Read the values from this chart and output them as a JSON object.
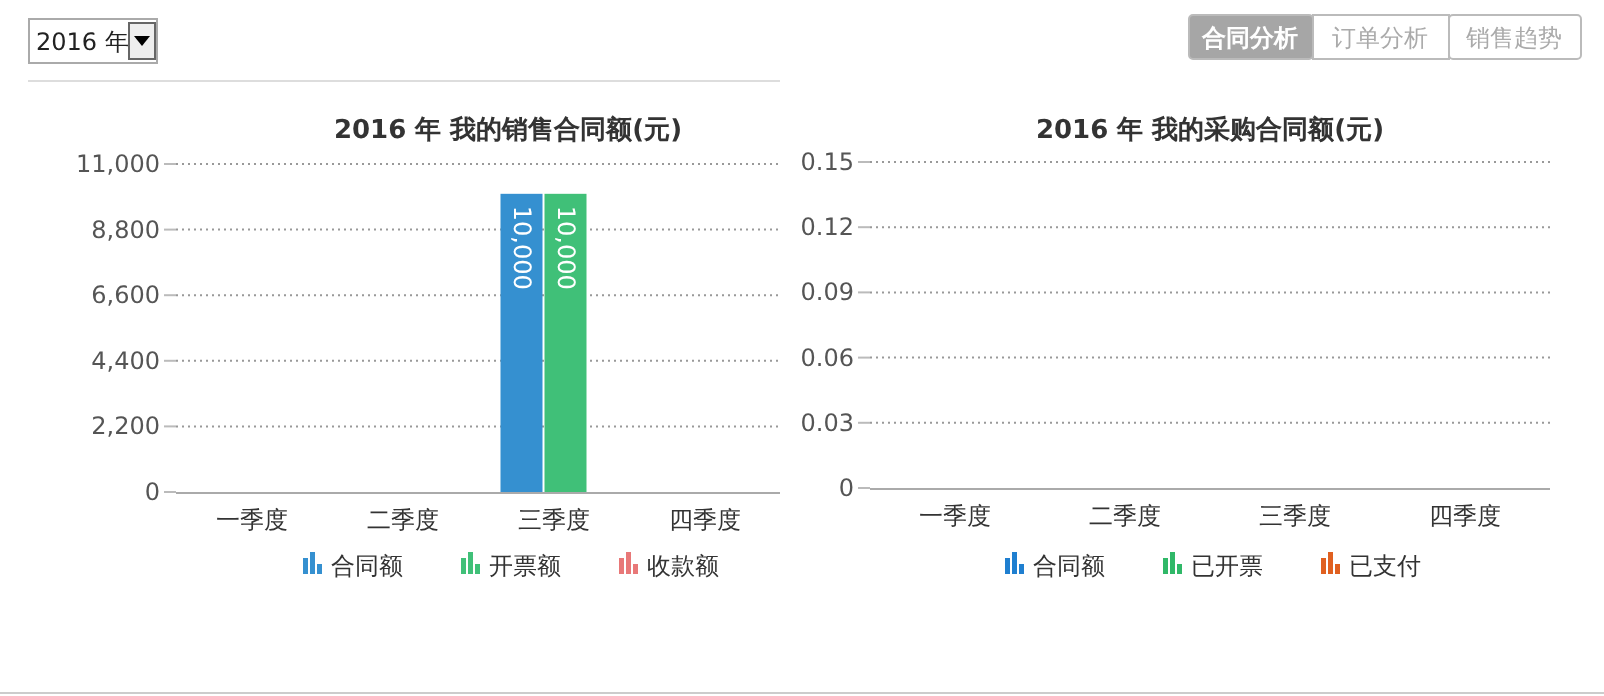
{
  "chart_data": [
    {
      "type": "other",
      "annotations": [
        "2016 年",
        "合同分析",
        "订单分析",
        "销售趋势"
      ]
    },
    {
      "type": "bar",
      "title": "2016 年 我的销售合同额(元)",
      "categories": [
        "一季度",
        "二季度",
        "三季度",
        "四季度"
      ],
      "series": [
        {
          "name": "合同额",
          "color": "#3590d0",
          "values": [
            0,
            0,
            10000,
            0
          ],
          "value_labels": [
            null,
            null,
            "10,000",
            null
          ]
        },
        {
          "name": "开票额",
          "color": "#40c078",
          "values": [
            0,
            0,
            10000,
            0
          ],
          "value_labels": [
            null,
            null,
            "10,000",
            null
          ]
        },
        {
          "name": "收款额",
          "color": "#e87878",
          "values": [
            0,
            0,
            0,
            0
          ]
        }
      ],
      "ylim": [
        0,
        11000
      ],
      "yticks": [
        {
          "value": 0,
          "label": "0"
        },
        {
          "value": 2200,
          "label": "2,200"
        },
        {
          "value": 4400,
          "label": "4,400"
        },
        {
          "value": 6600,
          "label": "6,600"
        },
        {
          "value": 8800,
          "label": "8,800"
        },
        {
          "value": 11000,
          "label": "11,000"
        }
      ],
      "grid": "y",
      "legend": "bottom"
    },
    {
      "type": "bar",
      "title": "2016 年 我的采购合同额(元)",
      "categories": [
        "一季度",
        "二季度",
        "三季度",
        "四季度"
      ],
      "series": [
        {
          "name": "合同额",
          "color": "#1f7fd0",
          "values": [
            0,
            0,
            0,
            0
          ]
        },
        {
          "name": "已开票",
          "color": "#30b868",
          "values": [
            0,
            0,
            0,
            0
          ]
        },
        {
          "name": "已支付",
          "color": "#e06020",
          "values": [
            0,
            0,
            0,
            0
          ]
        }
      ],
      "ylim": [
        0,
        0.15
      ],
      "yticks": [
        0,
        0.03,
        0.06,
        0.09,
        0.12,
        0.15
      ],
      "grid": "y",
      "legend": "bottom"
    }
  ]
}
